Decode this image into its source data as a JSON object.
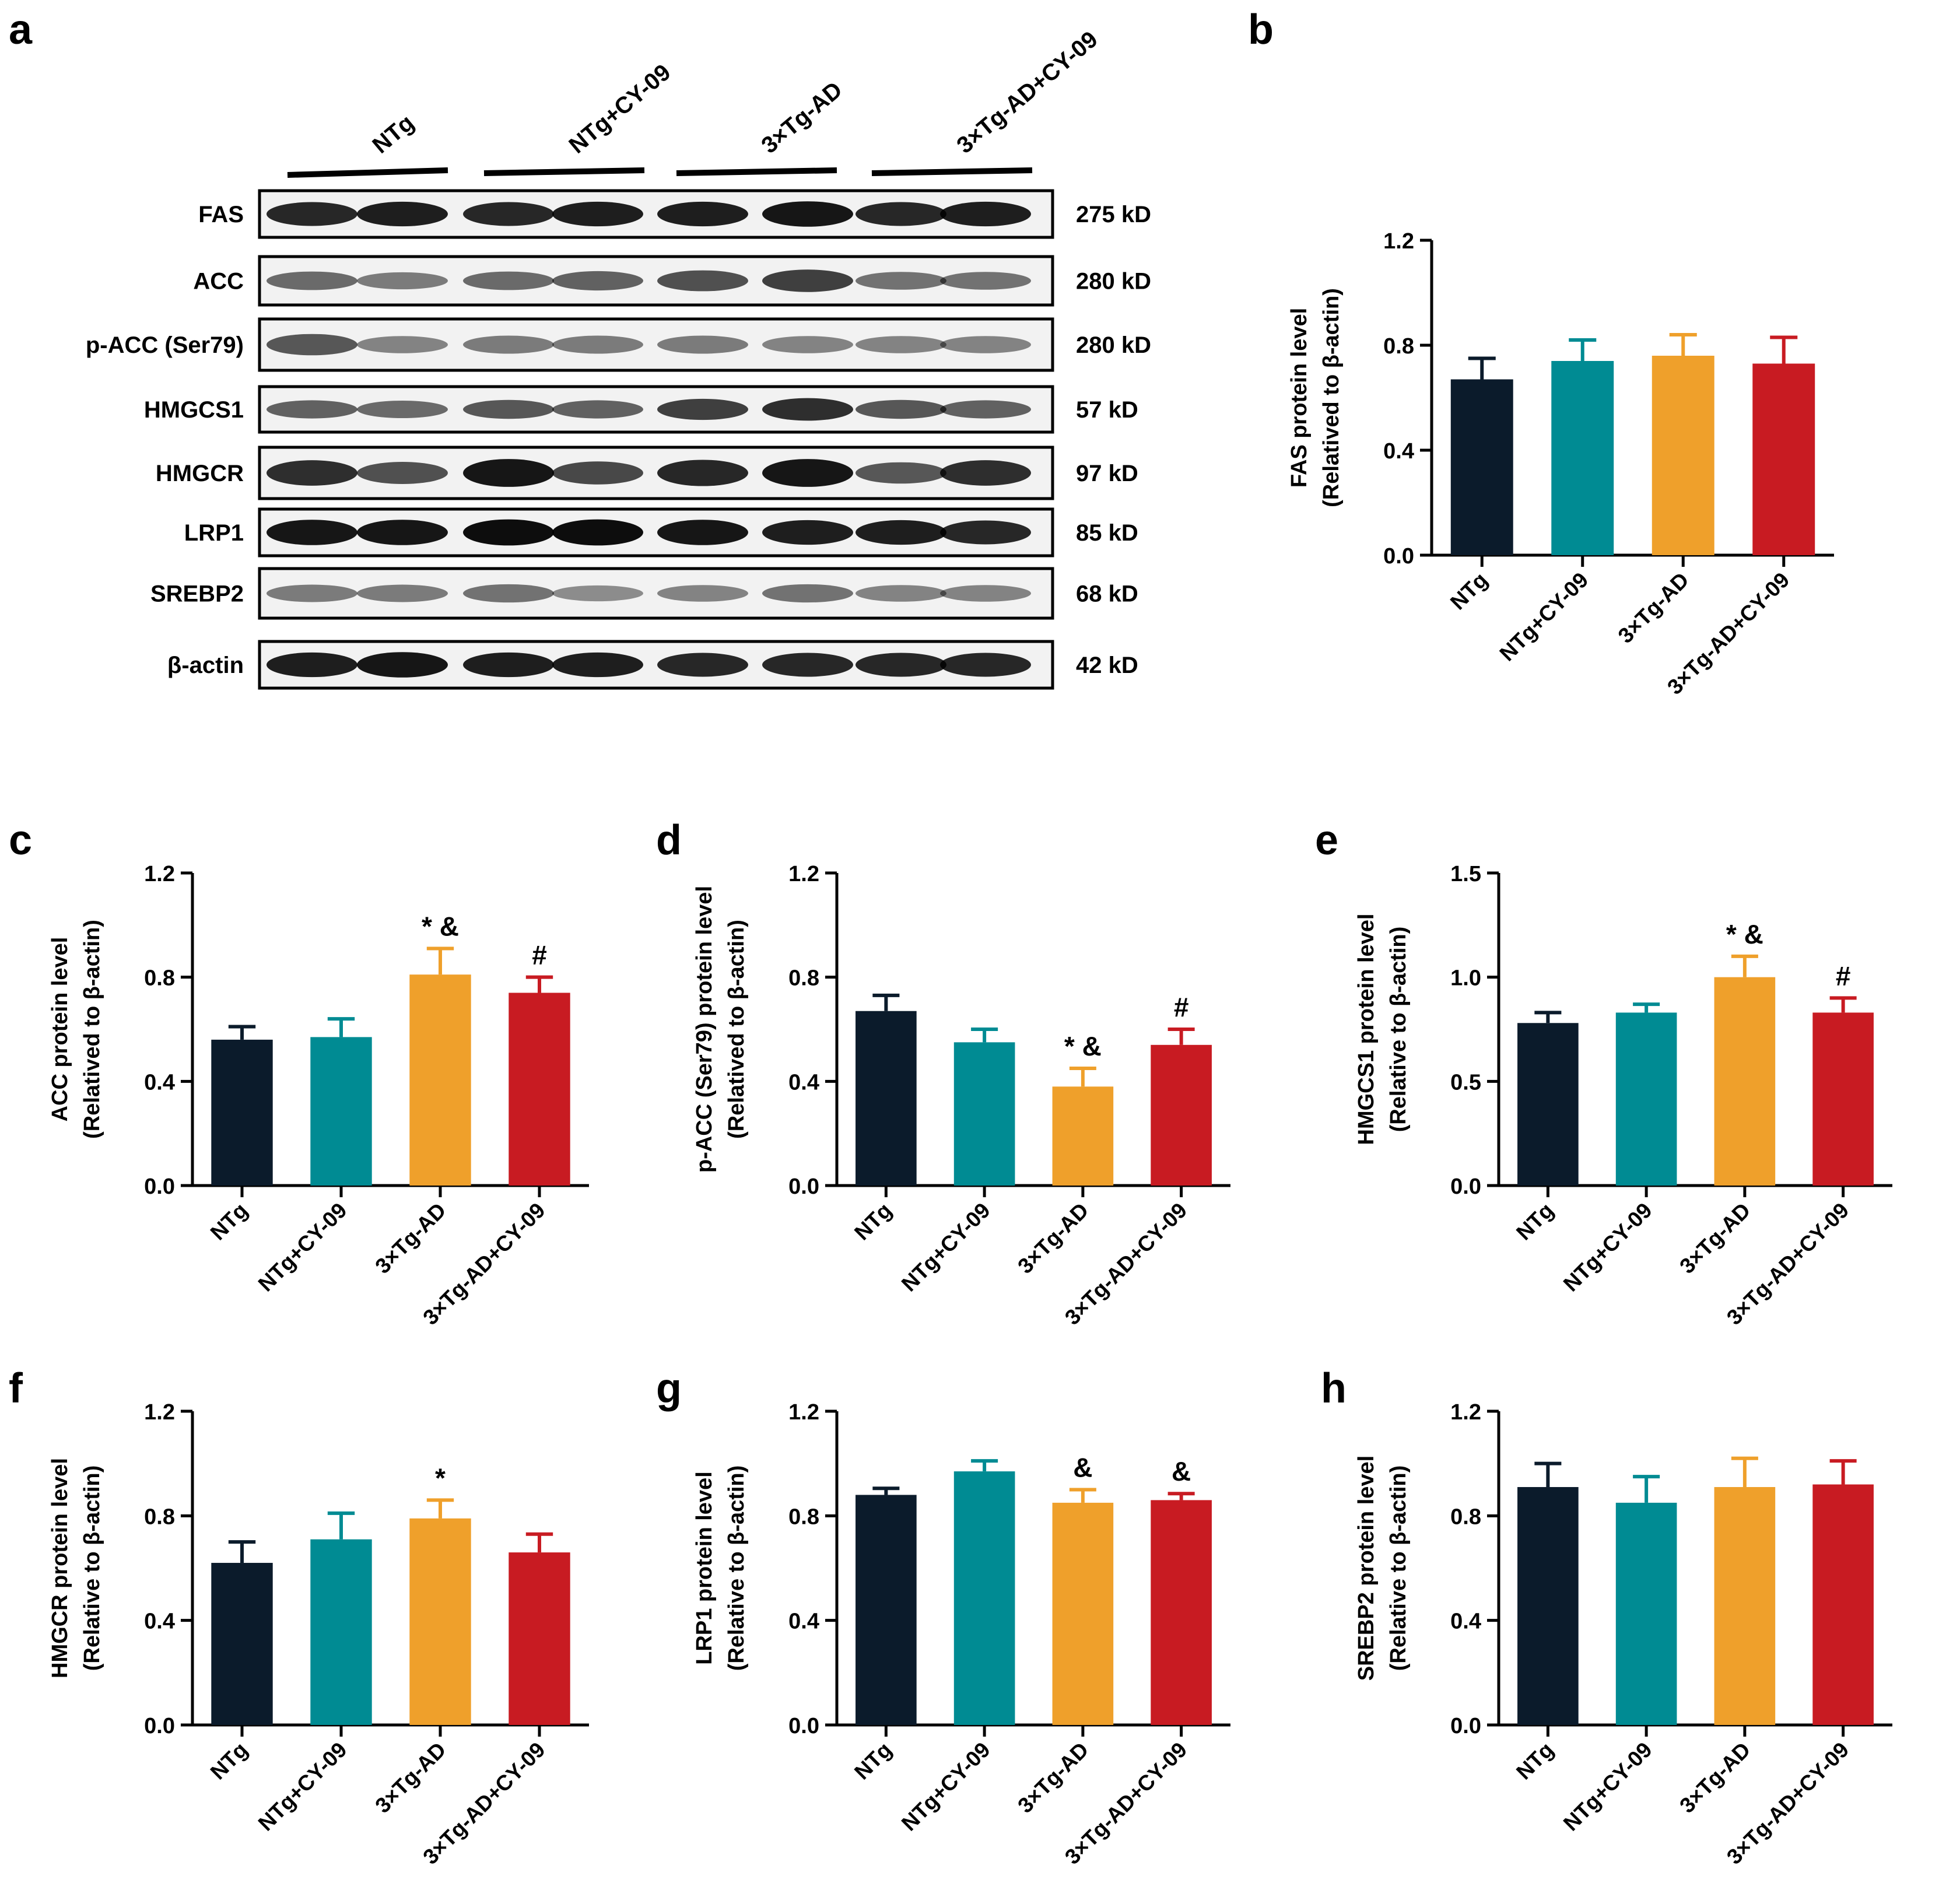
{
  "figure": {
    "panel_letters": {
      "a": "a",
      "b": "b",
      "c": "c",
      "d": "d",
      "e": "e",
      "f": "f",
      "g": "g",
      "h": "h"
    }
  },
  "colors": {
    "ntg": "#0b1b2b",
    "ntg_cy09": "#008b93",
    "ad": "#efa02b",
    "ad_cy09": "#c81b22",
    "axis": "#000000"
  },
  "blot": {
    "groups": [
      "NTg",
      "NTg+CY-09",
      "3×Tg-AD",
      "3×Tg-AD+CY-09"
    ],
    "rows": [
      {
        "protein": "FAS",
        "size": "275 kD"
      },
      {
        "protein": "ACC",
        "size": "280 kD"
      },
      {
        "protein": "p-ACC (Ser79)",
        "size": "280 kD"
      },
      {
        "protein": "HMGCS1",
        "size": "57 kD"
      },
      {
        "protein": "HMGCR",
        "size": "97 kD"
      },
      {
        "protein": "LRP1",
        "size": "85 kD"
      },
      {
        "protein": "SREBP2",
        "size": "68 kD"
      },
      {
        "protein": "β-actin",
        "size": "42 kD"
      }
    ]
  },
  "chart_data": [
    {
      "panel": "b",
      "type": "bar",
      "categories": [
        "NTg",
        "NTg+CY-09",
        "3×Tg-AD",
        "3×Tg-AD+CY-09"
      ],
      "values": [
        0.67,
        0.74,
        0.76,
        0.73
      ],
      "errors": [
        0.08,
        0.08,
        0.08,
        0.1
      ],
      "annotations": [
        "",
        "",
        "",
        ""
      ],
      "ylabel": [
        "FAS protein level",
        "(Relatived to β-actin)"
      ],
      "ylim": [
        0,
        1.2
      ],
      "yticks": [
        "0.0",
        "0.4",
        "0.8",
        "1.2"
      ]
    },
    {
      "panel": "c",
      "type": "bar",
      "categories": [
        "NTg",
        "NTg+CY-09",
        "3×Tg-AD",
        "3×Tg-AD+CY-09"
      ],
      "values": [
        0.56,
        0.57,
        0.81,
        0.74
      ],
      "errors": [
        0.05,
        0.07,
        0.1,
        0.06
      ],
      "annotations": [
        "",
        "",
        "* &",
        "#"
      ],
      "ylabel": [
        "ACC protein level",
        "(Relatived to β-actin)"
      ],
      "ylim": [
        0,
        1.2
      ],
      "yticks": [
        "0.0",
        "0.4",
        "0.8",
        "1.2"
      ]
    },
    {
      "panel": "d",
      "type": "bar",
      "categories": [
        "NTg",
        "NTg+CY-09",
        "3×Tg-AD",
        "3×Tg-AD+CY-09"
      ],
      "values": [
        0.67,
        0.55,
        0.38,
        0.54
      ],
      "errors": [
        0.06,
        0.05,
        0.07,
        0.06
      ],
      "annotations": [
        "",
        "",
        "* &",
        "#"
      ],
      "ylabel": [
        "p-ACC (Ser79) protein level",
        "(Relatived to β-actin)"
      ],
      "ylim": [
        0,
        1.2
      ],
      "yticks": [
        "0.0",
        "0.4",
        "0.8",
        "1.2"
      ]
    },
    {
      "panel": "e",
      "type": "bar",
      "categories": [
        "NTg",
        "NTg+CY-09",
        "3×Tg-AD",
        "3×Tg-AD+CY-09"
      ],
      "values": [
        0.78,
        0.83,
        1.0,
        0.83
      ],
      "errors": [
        0.05,
        0.04,
        0.1,
        0.07
      ],
      "annotations": [
        "",
        "",
        "* &",
        "#"
      ],
      "ylabel": [
        "HMGCS1 protein level",
        "(Relative to β-actin)"
      ],
      "ylim": [
        0,
        1.5
      ],
      "yticks": [
        "0.0",
        "0.5",
        "1.0",
        "1.5"
      ]
    },
    {
      "panel": "f",
      "type": "bar",
      "categories": [
        "NTg",
        "NTg+CY-09",
        "3×Tg-AD",
        "3×Tg-AD+CY-09"
      ],
      "values": [
        0.62,
        0.71,
        0.79,
        0.66
      ],
      "errors": [
        0.08,
        0.1,
        0.07,
        0.07
      ],
      "annotations": [
        "",
        "",
        "*",
        ""
      ],
      "ylabel": [
        "HMGCR protein level",
        "(Relative to β-actin)"
      ],
      "ylim": [
        0,
        1.2
      ],
      "yticks": [
        "0.0",
        "0.4",
        "0.8",
        "1.2"
      ]
    },
    {
      "panel": "g",
      "type": "bar",
      "categories": [
        "NTg",
        "NTg+CY-09",
        "3×Tg-AD",
        "3×Tg-AD+CY-09"
      ],
      "values": [
        0.88,
        0.97,
        0.85,
        0.86
      ],
      "errors": [
        0.025,
        0.04,
        0.05,
        0.025
      ],
      "annotations": [
        "",
        "",
        "&",
        "&"
      ],
      "ylabel": [
        "LRP1 protein level",
        "(Relative to β-actin)"
      ],
      "ylim": [
        0,
        1.2
      ],
      "yticks": [
        "0.0",
        "0.4",
        "0.8",
        "1.2"
      ]
    },
    {
      "panel": "h",
      "type": "bar",
      "categories": [
        "NTg",
        "NTg+CY-09",
        "3×Tg-AD",
        "3×Tg-AD+CY-09"
      ],
      "values": [
        0.91,
        0.85,
        0.91,
        0.92
      ],
      "errors": [
        0.09,
        0.1,
        0.11,
        0.09
      ],
      "annotations": [
        "",
        "",
        "",
        ""
      ],
      "ylabel": [
        "SREBP2 protein level",
        "(Relative to β-actin)"
      ],
      "ylim": [
        0,
        1.2
      ],
      "yticks": [
        "0.0",
        "0.4",
        "0.8",
        "1.2"
      ]
    }
  ]
}
